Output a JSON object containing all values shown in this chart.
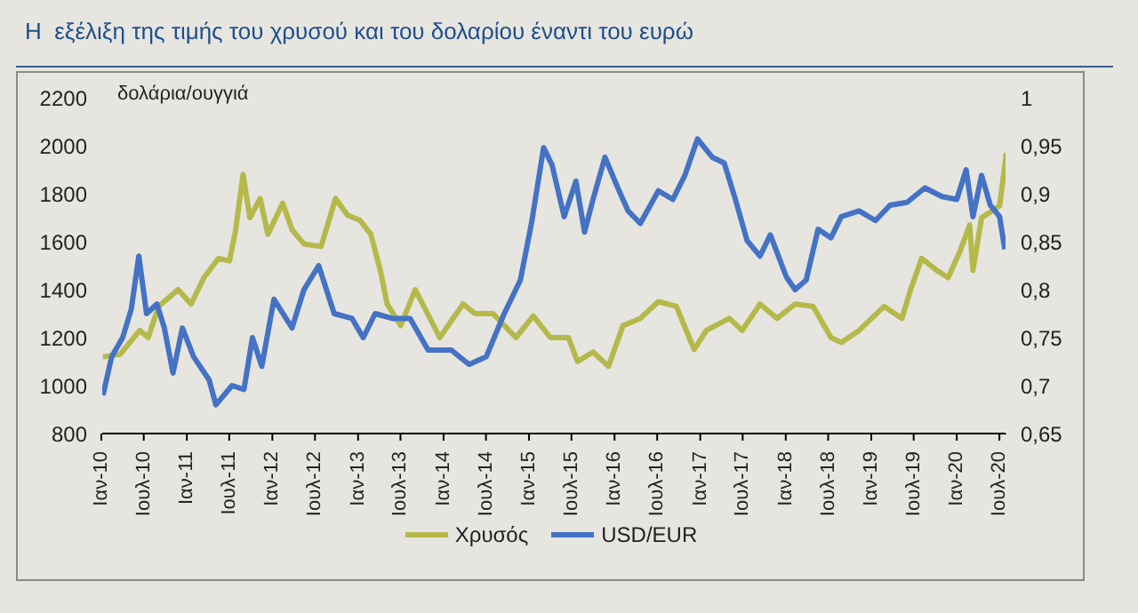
{
  "chart_data": {
    "type": "line",
    "title": "Η  εξέλιξη της τιμής του χρυσού και του δολαρίου έναντι του ευρώ",
    "ylabel": "δολάρια/ουγγιά",
    "xlim": [
      "2010-01-01",
      "2020-07-31"
    ],
    "xticks": [
      {
        "value": "2010-01",
        "label": "Ιαν-10"
      },
      {
        "value": "2010-07",
        "label": "Ιουλ-10"
      },
      {
        "value": "2011-01",
        "label": "Ιαν-11"
      },
      {
        "value": "2011-07",
        "label": "Ιουλ-11"
      },
      {
        "value": "2012-01",
        "label": "Ιαν-12"
      },
      {
        "value": "2012-07",
        "label": "Ιουλ-12"
      },
      {
        "value": "2013-01",
        "label": "Ιαν-13"
      },
      {
        "value": "2013-07",
        "label": "Ιουλ-13"
      },
      {
        "value": "2014-01",
        "label": "Ιαν-14"
      },
      {
        "value": "2014-07",
        "label": "Ιουλ-14"
      },
      {
        "value": "2015-01",
        "label": "Ιαν-15"
      },
      {
        "value": "2015-07",
        "label": "Ιουλ-15"
      },
      {
        "value": "2016-01",
        "label": "Ιαν-16"
      },
      {
        "value": "2016-07",
        "label": "Ιουλ-16"
      },
      {
        "value": "2017-01",
        "label": "Ιαν-17"
      },
      {
        "value": "2017-07",
        "label": "Ιουλ-17"
      },
      {
        "value": "2018-01",
        "label": "Ιαν-18"
      },
      {
        "value": "2018-07",
        "label": "Ιουλ-18"
      },
      {
        "value": "2019-01",
        "label": "Ιαν-19"
      },
      {
        "value": "2019-07",
        "label": "Ιουλ-19"
      },
      {
        "value": "2020-01",
        "label": "Ιαν-20"
      },
      {
        "value": "2020-07",
        "label": "Ιουλ-20"
      }
    ],
    "ylim": [
      800,
      2200
    ],
    "yticks": [
      800,
      1000,
      1200,
      1400,
      1600,
      1800,
      2000,
      2200
    ],
    "y2lim": [
      0.65,
      1
    ],
    "y2ticks": [
      {
        "value": 0.65,
        "label": "0,65"
      },
      {
        "value": 0.7,
        "label": "0,7"
      },
      {
        "value": 0.75,
        "label": "0,75"
      },
      {
        "value": 0.8,
        "label": "0,8"
      },
      {
        "value": 0.85,
        "label": "0,85"
      },
      {
        "value": 0.9,
        "label": "0,9"
      },
      {
        "value": 0.95,
        "label": "0,95"
      },
      {
        "value": 1,
        "label": "1"
      }
    ],
    "grid": false,
    "legend": "bottom",
    "marker": "none",
    "line_style": "solid",
    "series": [
      {
        "name": "Χρυσός",
        "color": "#b4b94a",
        "x": [
          "2010-01-08",
          "2010-03-22",
          "2010-06-14",
          "2010-07-20",
          "2010-09-02",
          "2010-11-25",
          "2011-01-19",
          "2011-03-15",
          "2011-05-16",
          "2011-07-02",
          "2011-07-27",
          "2011-08-29",
          "2011-09-27",
          "2011-11-10",
          "2011-12-13",
          "2012-02-14",
          "2012-03-25",
          "2012-05-15",
          "2012-07-27",
          "2012-09-27",
          "2012-11-17",
          "2013-01-08",
          "2013-02-25",
          "2013-04-06",
          "2013-05-05",
          "2013-07-02",
          "2013-09-02",
          "2013-12-16",
          "2014-03-25",
          "2014-05-15",
          "2014-07-31",
          "2014-11-06",
          "2015-01-19",
          "2015-04-02",
          "2015-06-18",
          "2015-07-27",
          "2015-10-01",
          "2015-12-06",
          "2016-02-06",
          "2016-04-20",
          "2016-07-06",
          "2016-09-21",
          "2016-12-06",
          "2017-01-27",
          "2017-05-05",
          "2017-06-29",
          "2017-09-13",
          "2017-11-25",
          "2018-02-10",
          "2018-04-28",
          "2018-07-13",
          "2018-08-26",
          "2018-11-10",
          "2019-02-25",
          "2019-05-12",
          "2019-06-18",
          "2019-08-04",
          "2019-10-08",
          "2019-11-25",
          "2020-01-15",
          "2020-02-25",
          "2020-03-10",
          "2020-04-16",
          "2020-06-03",
          "2020-07-02",
          "2020-07-31"
        ],
        "values": [
          1120,
          1130,
          1230,
          1200,
          1330,
          1400,
          1340,
          1450,
          1530,
          1520,
          1640,
          1880,
          1700,
          1780,
          1630,
          1760,
          1650,
          1590,
          1580,
          1780,
          1710,
          1690,
          1630,
          1480,
          1340,
          1250,
          1400,
          1200,
          1340,
          1300,
          1300,
          1200,
          1290,
          1200,
          1200,
          1100,
          1140,
          1080,
          1250,
          1280,
          1350,
          1330,
          1150,
          1230,
          1280,
          1230,
          1340,
          1280,
          1340,
          1330,
          1200,
          1180,
          1230,
          1330,
          1280,
          1400,
          1530,
          1480,
          1450,
          1560,
          1670,
          1480,
          1700,
          1730,
          1750,
          1970
        ]
      },
      {
        "name": "USD/EUR",
        "color": "#4472c4",
        "axis": "y2",
        "x": [
          "2010-01-08",
          "2010-02-14",
          "2010-04-02",
          "2010-05-09",
          "2010-06-10",
          "2010-07-13",
          "2010-08-26",
          "2010-09-27",
          "2010-11-03",
          "2010-12-13",
          "2011-01-30",
          "2011-04-06",
          "2011-05-05",
          "2011-07-13",
          "2011-09-02",
          "2011-10-08",
          "2011-11-17",
          "2012-01-08",
          "2012-03-25",
          "2012-05-15",
          "2012-07-17",
          "2012-09-21",
          "2012-12-06",
          "2013-01-23",
          "2013-03-15",
          "2013-05-27",
          "2013-08-11",
          "2013-10-27",
          "2014-02-03",
          "2014-04-20",
          "2014-07-02",
          "2014-09-17",
          "2014-11-25",
          "2015-01-12",
          "2015-03-04",
          "2015-04-09",
          "2015-05-31",
          "2015-07-20",
          "2015-08-26",
          "2015-10-01",
          "2015-11-21",
          "2016-01-15",
          "2016-02-28",
          "2016-04-20",
          "2016-07-06",
          "2016-09-06",
          "2016-10-27",
          "2016-12-20",
          "2017-02-21",
          "2017-04-13",
          "2017-05-31",
          "2017-07-20",
          "2017-09-13",
          "2017-10-27",
          "2018-01-04",
          "2018-02-10",
          "2018-03-29",
          "2018-05-19",
          "2018-07-13",
          "2018-08-26",
          "2018-11-10",
          "2019-01-19",
          "2019-03-22",
          "2019-06-03",
          "2019-08-18",
          "2019-10-30",
          "2020-01-01",
          "2020-02-10",
          "2020-03-10",
          "2020-04-16",
          "2020-05-23",
          "2020-07-02",
          "2020-07-24"
        ],
        "values": [
          0.69,
          0.73,
          0.75,
          0.78,
          0.835,
          0.775,
          0.785,
          0.76,
          0.713,
          0.76,
          0.73,
          0.706,
          0.68,
          0.7,
          0.696,
          0.75,
          0.72,
          0.79,
          0.76,
          0.8,
          0.825,
          0.775,
          0.77,
          0.75,
          0.775,
          0.77,
          0.77,
          0.737,
          0.737,
          0.722,
          0.73,
          0.775,
          0.81,
          0.87,
          0.948,
          0.93,
          0.876,
          0.913,
          0.86,
          0.894,
          0.938,
          0.906,
          0.882,
          0.869,
          0.903,
          0.894,
          0.919,
          0.957,
          0.938,
          0.932,
          0.894,
          0.851,
          0.835,
          0.857,
          0.813,
          0.8,
          0.81,
          0.863,
          0.854,
          0.876,
          0.882,
          0.872,
          0.888,
          0.891,
          0.906,
          0.897,
          0.894,
          0.925,
          0.876,
          0.919,
          0.888,
          0.876,
          0.842
        ]
      }
    ]
  }
}
